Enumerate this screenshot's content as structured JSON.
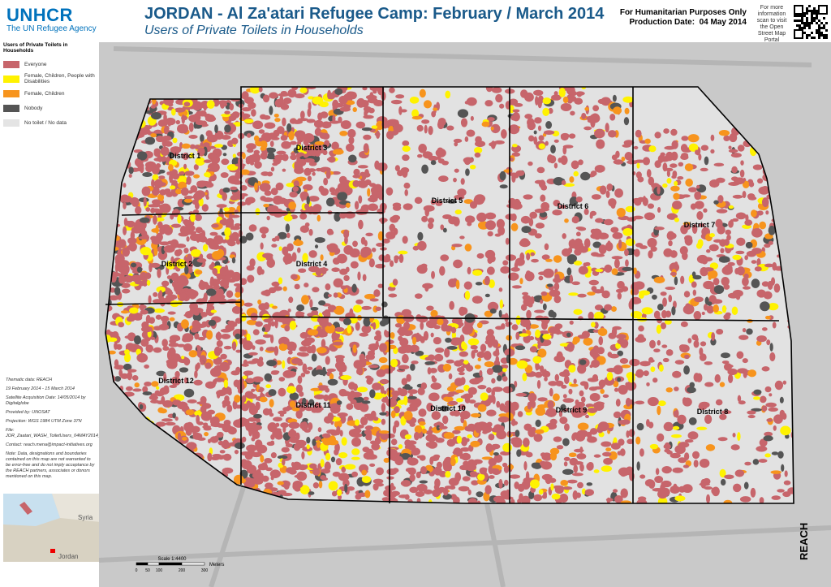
{
  "header": {
    "logo": "UNHCR",
    "agency": "The UN Refugee Agency",
    "title": "JORDAN - Al Za'atari Refugee Camp: February / March 2014",
    "subtitle": "Users of Private Toilets in Households",
    "disclaimer": "For Humanitarian Purposes Only",
    "production_label": "Production Date:",
    "production_date": "04 May 2014",
    "qr_note": "For more information scan to visit the Open Street Map Portal"
  },
  "legend": {
    "title": "Users of Private Toilets in Households",
    "items": [
      {
        "label": "Everyone",
        "color": "#c7656b"
      },
      {
        "label": "Female, Children, People with Disabilities",
        "color": "#fff200"
      },
      {
        "label": "Female, Children",
        "color": "#f7941d"
      },
      {
        "label": "Nobody",
        "color": "#555555"
      },
      {
        "label": "No toilet / No data",
        "color": "#e4e4e4"
      }
    ]
  },
  "districts": [
    {
      "label": "District 1"
    },
    {
      "label": "District 2"
    },
    {
      "label": "District 3"
    },
    {
      "label": "District 4"
    },
    {
      "label": "District 5"
    },
    {
      "label": "District 6"
    },
    {
      "label": "District 7"
    },
    {
      "label": "District 8"
    },
    {
      "label": "District 9"
    },
    {
      "label": "District 10"
    },
    {
      "label": "District 11"
    },
    {
      "label": "District 12"
    }
  ],
  "notes": [
    "Thematic data: REACH",
    "19 February 2014 - 15 March 2014",
    "Satellite Acquisition Date: 14/05/2014 by Digitalglobe",
    "Provided by: UNOSAT",
    "Projection: WGS 1984 UTM Zone 37N",
    "File: JOR_Zaatari_WASH_ToiletUsers_04MAY2014_A1",
    "Contact: reach.mena@impact-initiatives.org",
    "Note: Data, designations and boundaries contained on this map are not warranted to be error-free and do not imply acceptance by the REACH partners, associates or donors mentioned on this map."
  ],
  "inset": {
    "labels": [
      "Syria",
      "Jordan"
    ]
  },
  "scale": {
    "title": "Scale 1:4400",
    "ticks": [
      0,
      50,
      100,
      200,
      300
    ],
    "unit": "Meters"
  },
  "footer": {
    "brand": "REACH"
  }
}
